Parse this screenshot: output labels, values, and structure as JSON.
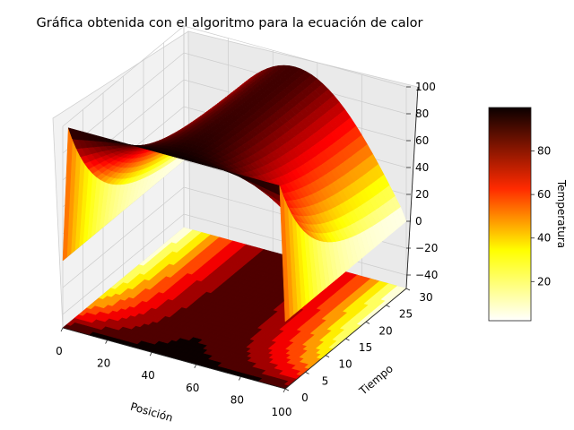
{
  "chart_data": {
    "type": "surface3d",
    "title": "Gráfica obtenida con el algoritmo para la ecuación de calor",
    "xlabel": "Posición",
    "ylabel": "Tiempo",
    "zlabel": "",
    "colorbar_label": "Temperatura",
    "colormap": "hot_r",
    "x_ticks": [
      "0",
      "20",
      "40",
      "60",
      "80",
      "100"
    ],
    "y_ticks": [
      "0",
      "5",
      "10",
      "15",
      "20",
      "25",
      "30"
    ],
    "z_ticks": [
      "−40",
      "−20",
      "0",
      "20",
      "40",
      "60",
      "80",
      "100"
    ],
    "colorbar_ticks": [
      "20",
      "40",
      "60",
      "80"
    ],
    "xlim": [
      0,
      100
    ],
    "ylim": [
      0,
      30
    ],
    "zlim": [
      -50,
      100
    ],
    "colorbar_range": [
      2,
      100
    ],
    "filled_contour_projection": true,
    "grid": true
  }
}
